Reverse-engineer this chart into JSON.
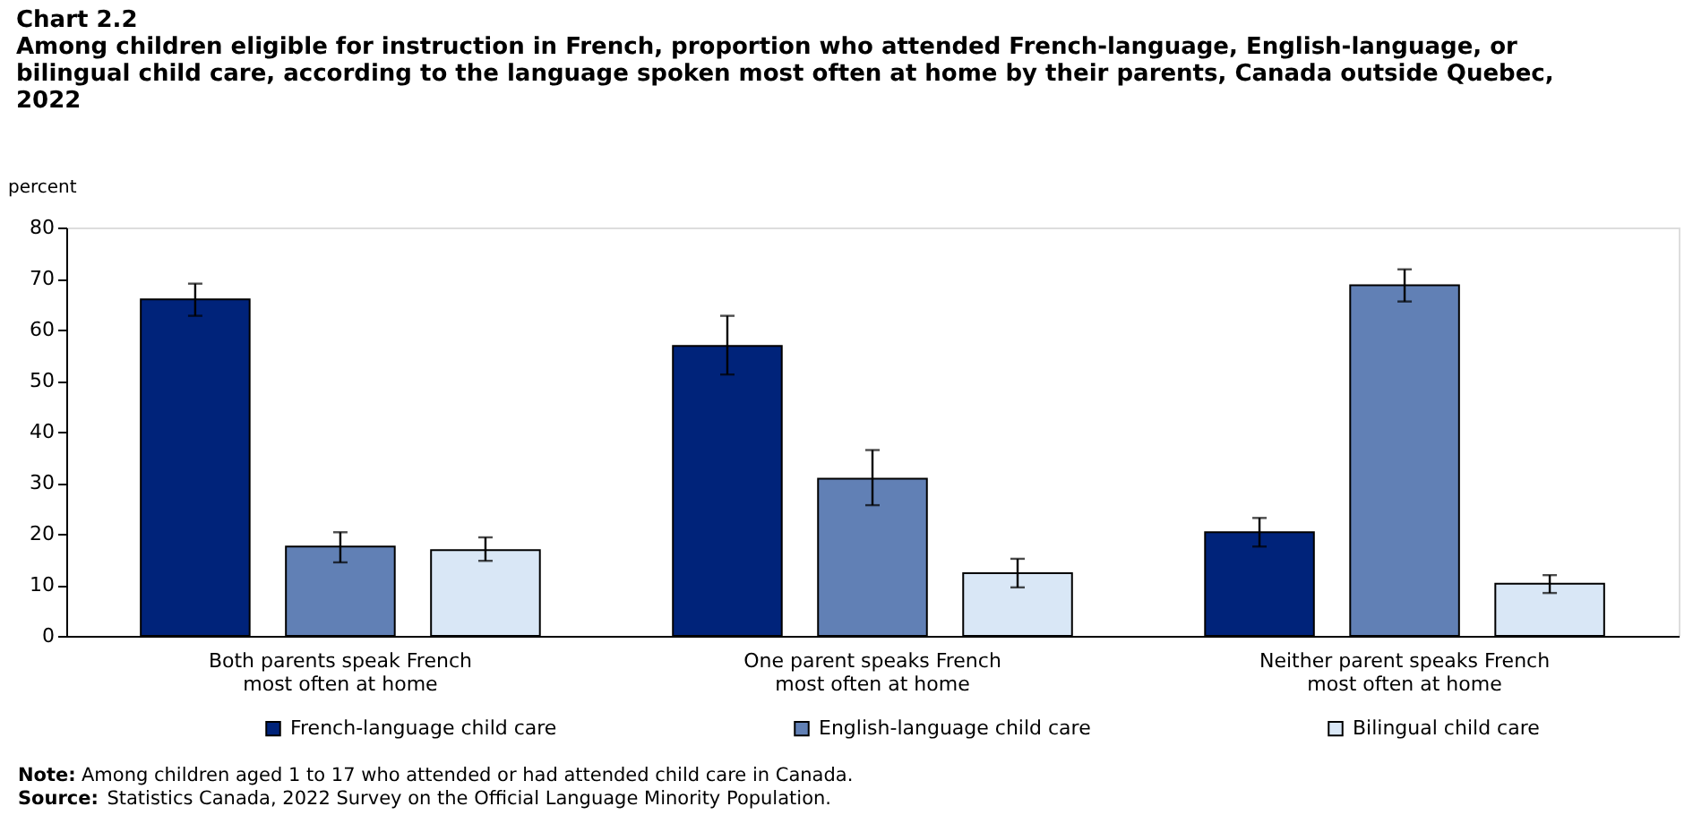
{
  "chart_data": {
    "type": "bar",
    "title": "Chart 2.2",
    "subtitle": "Among children eligible for instruction in French, proportion who attended French-language, English-language, or bilingual child care, according to the language spoken most often at home by their parents, Canada outside Quebec, 2022",
    "ylabel": "percent",
    "categories": [
      "Both parents speak French most often at home",
      "One parent speaks French most often at home",
      "Neither parent speaks French most often at home"
    ],
    "series": [
      {
        "name": "French-language child care",
        "color": "#00237a",
        "values": [
          65.9,
          56.8,
          20.3
        ],
        "errors": [
          [
            62.7,
            69.0
          ],
          [
            51.2,
            62.7
          ],
          [
            17.5,
            23.1
          ]
        ]
      },
      {
        "name": "English-language child care",
        "color": "#6180b5",
        "values": [
          17.5,
          30.8,
          68.7
        ],
        "errors": [
          [
            14.4,
            20.3
          ],
          [
            25.6,
            36.4
          ],
          [
            65.5,
            71.8
          ]
        ]
      },
      {
        "name": "Bilingual child care",
        "color": "#d9e7f6",
        "values": [
          16.8,
          12.3,
          10.2
        ],
        "errors": [
          [
            14.7,
            19.3
          ],
          [
            9.5,
            15.1
          ],
          [
            8.4,
            11.9
          ]
        ]
      }
    ],
    "ylim": [
      0,
      80
    ],
    "yticks": [
      0,
      10,
      20,
      30,
      40,
      50,
      60,
      70,
      80
    ],
    "grid": false,
    "legend": "bottom",
    "annotations": [
      "Note: Among children aged 1 to 17 who attended or had attended child care in Canada.",
      "Source: Statistics Canada, 2022 Survey on the Official Language Minority Population."
    ]
  }
}
